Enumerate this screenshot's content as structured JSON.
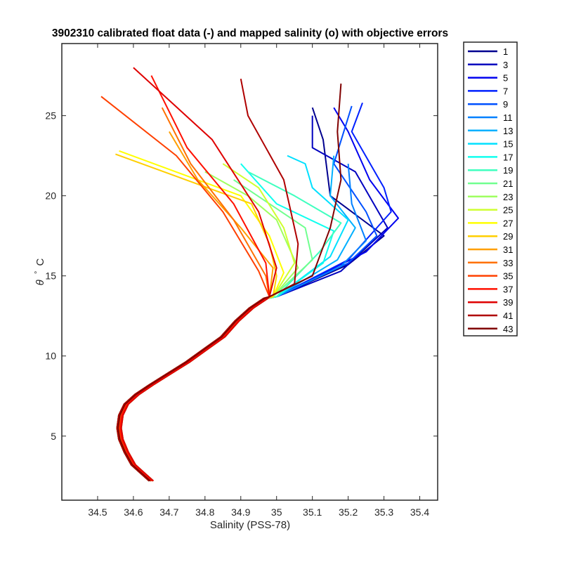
{
  "chart_data": {
    "type": "line",
    "title": "3902310 calibrated float data (-) and mapped salinity (o) with objective errors",
    "xlabel": "Salinity (PSS-78)",
    "ylabel_symbol": "θ",
    "ylabel_unit": "C",
    "xlim": [
      34.4,
      35.45
    ],
    "ylim": [
      1,
      29.5
    ],
    "xticks": [
      34.5,
      34.6,
      34.7,
      34.8,
      34.9,
      35,
      35.1,
      35.2,
      35.3,
      35.4
    ],
    "xtick_labels": [
      "34.5",
      "34.6",
      "34.7",
      "34.8",
      "34.9",
      "35",
      "35.1",
      "35.2",
      "35.3",
      "35.4"
    ],
    "yticks": [
      5,
      10,
      15,
      20,
      25
    ],
    "ytick_labels": [
      "5",
      "10",
      "15",
      "20",
      "25"
    ],
    "legend_placement": "outside-right",
    "legend": [
      "1",
      "3",
      "5",
      "7",
      "9",
      "11",
      "13",
      "15",
      "17",
      "19",
      "21",
      "23",
      "25",
      "27",
      "29",
      "31",
      "33",
      "35",
      "37",
      "39",
      "41",
      "43"
    ],
    "colors": [
      "#00008f",
      "#0000bf",
      "#0000ef",
      "#0020ff",
      "#0050ff",
      "#0080ff",
      "#00b0ff",
      "#00e0ff",
      "#10ffef",
      "#40ffbf",
      "#70ff8f",
      "#9fff60",
      "#cfff30",
      "#ffff00",
      "#ffcf00",
      "#ff9f00",
      "#ff7000",
      "#ff4000",
      "#ff1000",
      "#df0000",
      "#af0000",
      "#800000"
    ],
    "deep_profile": [
      [
        34.65,
        2.2
      ],
      [
        34.63,
        2.6
      ],
      [
        34.6,
        3.2
      ],
      [
        34.58,
        4
      ],
      [
        34.565,
        4.8
      ],
      [
        34.56,
        5.5
      ],
      [
        34.565,
        6.3
      ],
      [
        34.58,
        7
      ],
      [
        34.61,
        7.6
      ],
      [
        34.65,
        8.2
      ],
      [
        34.7,
        8.9
      ],
      [
        34.75,
        9.6
      ],
      [
        34.8,
        10.4
      ],
      [
        34.85,
        11.2
      ],
      [
        34.89,
        12.2
      ],
      [
        34.93,
        13
      ],
      [
        34.97,
        13.6
      ]
    ],
    "surface_profiles": [
      {
        "profile": "1",
        "points": [
          [
            35.0,
            13.7
          ],
          [
            35.2,
            15.7
          ],
          [
            35.3,
            17.5
          ],
          [
            35.15,
            20
          ],
          [
            35.13,
            23.5
          ],
          [
            35.1,
            25.5
          ]
        ]
      },
      {
        "profile": "3",
        "points": [
          [
            35.0,
            13.7
          ],
          [
            35.18,
            15.3
          ],
          [
            35.31,
            18
          ],
          [
            35.22,
            21.5
          ],
          [
            35.1,
            23
          ],
          [
            35.1,
            25
          ]
        ]
      },
      {
        "profile": "5",
        "points": [
          [
            35.0,
            13.7
          ],
          [
            35.25,
            16.5
          ],
          [
            35.34,
            18.6
          ],
          [
            35.26,
            21
          ],
          [
            35.2,
            24
          ],
          [
            35.16,
            25.5
          ]
        ]
      },
      {
        "profile": "7",
        "points": [
          [
            35.0,
            13.7
          ],
          [
            35.2,
            16
          ],
          [
            35.32,
            19
          ],
          [
            35.3,
            20.5
          ],
          [
            35.21,
            24
          ],
          [
            35.24,
            25.8
          ]
        ]
      },
      {
        "profile": "9",
        "points": [
          [
            35.0,
            13.7
          ],
          [
            35.2,
            15.8
          ],
          [
            35.28,
            17.5
          ],
          [
            35.25,
            19
          ],
          [
            35.16,
            22
          ],
          [
            35.21,
            25.6
          ]
        ]
      },
      {
        "profile": "11",
        "points": [
          [
            35.0,
            13.7
          ],
          [
            35.18,
            15.6
          ],
          [
            35.25,
            17.2
          ],
          [
            35.21,
            19.5
          ],
          [
            35.2,
            22
          ]
        ]
      },
      {
        "profile": "13",
        "points": [
          [
            35.0,
            13.7
          ],
          [
            35.17,
            16
          ],
          [
            35.22,
            18
          ],
          [
            35.15,
            20
          ],
          [
            35.16,
            22.5
          ]
        ]
      },
      {
        "profile": "15",
        "points": [
          [
            35.0,
            13.7
          ],
          [
            35.15,
            16.2
          ],
          [
            35.2,
            18.5
          ],
          [
            35.1,
            20.5
          ],
          [
            35.08,
            22
          ],
          [
            35.03,
            22.5
          ]
        ]
      },
      {
        "profile": "17",
        "points": [
          [
            35.0,
            13.7
          ],
          [
            35.13,
            15.8
          ],
          [
            35.16,
            17.8
          ],
          [
            35.0,
            19.5
          ],
          [
            34.9,
            22
          ]
        ]
      },
      {
        "profile": "19",
        "points": [
          [
            35.0,
            13.7
          ],
          [
            35.12,
            16.5
          ],
          [
            35.18,
            18.3
          ],
          [
            35.05,
            20
          ],
          [
            34.92,
            21.5
          ]
        ]
      },
      {
        "profile": "21",
        "points": [
          [
            34.99,
            13.7
          ],
          [
            35.1,
            16
          ],
          [
            35.08,
            18
          ],
          [
            34.98,
            19.5
          ],
          [
            34.88,
            21
          ]
        ]
      },
      {
        "profile": "23",
        "points": [
          [
            34.99,
            13.7
          ],
          [
            35.06,
            15.5
          ],
          [
            35.0,
            18.5
          ],
          [
            34.92,
            20
          ],
          [
            34.8,
            21.5
          ]
        ]
      },
      {
        "profile": "25",
        "points": [
          [
            34.99,
            13.7
          ],
          [
            35.05,
            15.8
          ],
          [
            35.02,
            18
          ],
          [
            34.95,
            20.5
          ],
          [
            34.85,
            22
          ]
        ]
      },
      {
        "profile": "27",
        "points": [
          [
            34.99,
            13.7
          ],
          [
            35.02,
            15.2
          ],
          [
            34.98,
            17.5
          ],
          [
            34.9,
            20
          ],
          [
            34.56,
            22.8
          ]
        ]
      },
      {
        "profile": "29",
        "points": [
          [
            34.99,
            13.7
          ],
          [
            35.0,
            15
          ],
          [
            34.98,
            17
          ],
          [
            34.93,
            19.5
          ],
          [
            34.55,
            22.6
          ]
        ]
      },
      {
        "profile": "31",
        "points": [
          [
            34.98,
            13.7
          ],
          [
            34.99,
            15.5
          ],
          [
            34.9,
            18
          ],
          [
            34.78,
            21
          ],
          [
            34.7,
            24
          ]
        ]
      },
      {
        "profile": "33",
        "points": [
          [
            34.98,
            13.7
          ],
          [
            34.97,
            15
          ],
          [
            34.88,
            18.5
          ],
          [
            34.76,
            22
          ],
          [
            34.68,
            25.5
          ]
        ]
      },
      {
        "profile": "35",
        "points": [
          [
            34.98,
            13.7
          ],
          [
            34.95,
            15.3
          ],
          [
            34.85,
            19
          ],
          [
            34.72,
            22.5
          ],
          [
            34.51,
            26.2
          ]
        ]
      },
      {
        "profile": "37",
        "points": [
          [
            34.98,
            13.7
          ],
          [
            34.97,
            15.8
          ],
          [
            34.88,
            19.5
          ],
          [
            34.75,
            23
          ],
          [
            34.65,
            27.5
          ]
        ]
      },
      {
        "profile": "39",
        "points": [
          [
            34.98,
            13.7
          ],
          [
            35.0,
            15.5
          ],
          [
            34.95,
            19
          ],
          [
            34.82,
            23.5
          ],
          [
            34.6,
            28
          ]
        ]
      },
      {
        "profile": "41",
        "points": [
          [
            34.98,
            13.7
          ],
          [
            35.05,
            14.5
          ],
          [
            35.06,
            17
          ],
          [
            35.02,
            21
          ],
          [
            34.92,
            25
          ],
          [
            34.9,
            27.3
          ]
        ]
      },
      {
        "profile": "43",
        "points": [
          [
            34.98,
            13.7
          ],
          [
            35.1,
            15
          ],
          [
            35.15,
            18
          ],
          [
            35.18,
            21
          ],
          [
            35.17,
            24
          ],
          [
            35.18,
            27
          ]
        ]
      }
    ]
  }
}
